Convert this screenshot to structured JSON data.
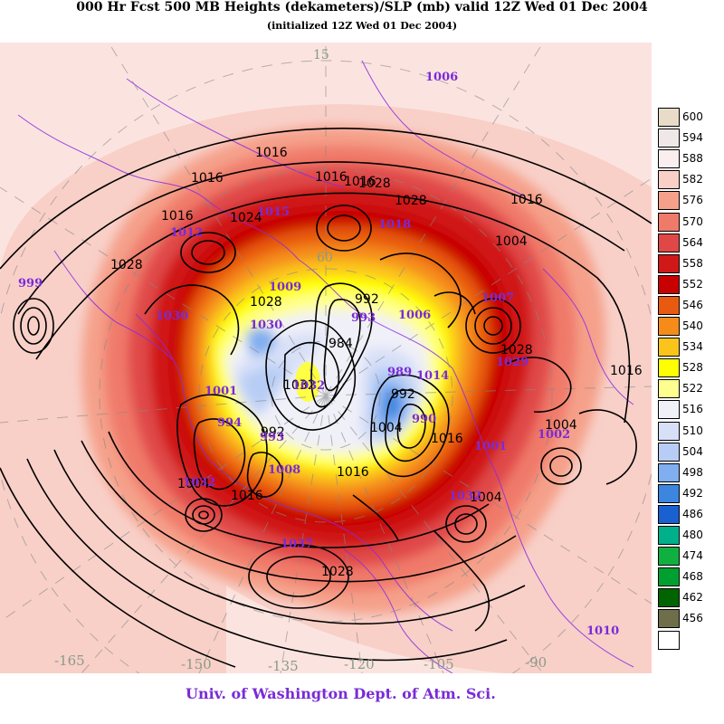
{
  "title": "000 Hr Fcst 500 MB Heights (dekameters)/SLP (mb) valid 12Z Wed 01 Dec 2004",
  "subtitle": "(initialized 12Z Wed 01 Dec 2004)",
  "credit": "Univ. of Washington Dept. of Atm. Sci.",
  "legend": {
    "levels": [
      {
        "label": "600",
        "color": "#e8dcc8"
      },
      {
        "label": "594",
        "color": "#f0e8e8"
      },
      {
        "label": "588",
        "color": "#fbeeee"
      },
      {
        "label": "582",
        "color": "#f8d0c8"
      },
      {
        "label": "576",
        "color": "#f5a08a"
      },
      {
        "label": "570",
        "color": "#f07a6a"
      },
      {
        "label": "564",
        "color": "#e04848"
      },
      {
        "label": "558",
        "color": "#d01818"
      },
      {
        "label": "552",
        "color": "#c80000"
      },
      {
        "label": "546",
        "color": "#e85a10"
      },
      {
        "label": "540",
        "color": "#f58c1a"
      },
      {
        "label": "534",
        "color": "#fbc41a"
      },
      {
        "label": "528",
        "color": "#ffff00"
      },
      {
        "label": "522",
        "color": "#ffff90"
      },
      {
        "label": "516",
        "color": "#f0f0f8"
      },
      {
        "label": "510",
        "color": "#d8e0f8"
      },
      {
        "label": "504",
        "color": "#b8cdf5"
      },
      {
        "label": "498",
        "color": "#80aef0"
      },
      {
        "label": "492",
        "color": "#3c86e0"
      },
      {
        "label": "486",
        "color": "#1a60d0"
      },
      {
        "label": "480",
        "color": "#00b08a"
      },
      {
        "label": "474",
        "color": "#10b040"
      },
      {
        "label": "468",
        "color": "#00a030"
      },
      {
        "label": "462",
        "color": "#006400"
      },
      {
        "label": "456",
        "color": "#6e6e4a"
      },
      {
        "label": "",
        "color": "#ffffff"
      }
    ]
  },
  "slp_labels_black": [
    "1016",
    "1016",
    "1016",
    "1016",
    "1016",
    "1016",
    "1028",
    "1024",
    "1028",
    "1028",
    "1028",
    "1004",
    "1028",
    "1016",
    "992",
    "992",
    "984",
    "1004",
    "1016",
    "1016",
    "1004",
    "1032",
    "1004",
    "1016",
    "1028",
    "992",
    "1004"
  ],
  "slp_labels_purple": [
    "1006",
    "999",
    "1012",
    "1015",
    "1018",
    "1030",
    "1007",
    "1009",
    "1030",
    "993",
    "989",
    "1006",
    "1001",
    "1032",
    "994",
    "993",
    "1032",
    "1008",
    "1014",
    "990",
    "1001",
    "1029",
    "1002",
    "1032",
    "1037",
    "1010"
  ],
  "lon_labels": [
    "-165",
    "-150",
    "-135",
    "-120",
    "-105",
    "-90"
  ],
  "lat_labels": [
    "15",
    "60"
  ]
}
